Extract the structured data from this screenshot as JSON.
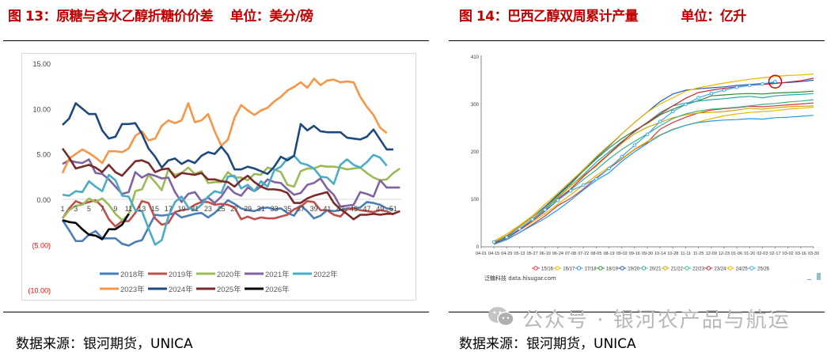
{
  "left": {
    "title": "图 13：原糖与含水乙醇折糖价价差    单位：美分/磅",
    "source": "数据来源：银河期货，UNICA"
  },
  "right": {
    "title": "图 14：巴西乙醇双周累计产量          单位：亿升",
    "source": "数据来源：银河期货，UNICA",
    "chart_credit": "泛糖科技 data.hisugar.com"
  },
  "watermark": "公众号 · 银河农产品与航运",
  "chart_data": [
    {
      "type": "line",
      "title": "",
      "xlabel": "",
      "ylabel": "",
      "ylim": [
        -10,
        15
      ],
      "y_ticks": [
        "15.00",
        "10.00",
        "5.00",
        "0.00",
        "(5.00)",
        "(10.00)"
      ],
      "x_ticks": [
        "1",
        "3",
        "5",
        "7",
        "9",
        "11",
        "13",
        "15",
        "17",
        "19",
        "21",
        "23",
        "25",
        "27",
        "29",
        "31",
        "33",
        "35",
        "37",
        "39",
        "41",
        "43",
        "45",
        "47",
        "49",
        "51"
      ],
      "grid": false,
      "legend": "bottom",
      "series": [
        {
          "name": "2018年",
          "color": "#4a7ebb",
          "values": [
            -2.3,
            -3.4,
            -4.6,
            -4.6,
            -3.9,
            -3.5,
            -4.3,
            -4.3,
            -4.3,
            -4.9,
            -5.1,
            -4.7,
            -4.5,
            -3.1,
            -1.7,
            -1.8,
            -1.7,
            -1.5,
            -2.0,
            -1.8,
            -1.6,
            -1.5,
            -2.0,
            -1.5,
            -0.8,
            -0.1,
            -0.5,
            -1.0,
            -1.2,
            -1.3,
            -1.0,
            -0.9,
            -1.1,
            -1.0,
            -1.5,
            -1.8,
            -0.7,
            -1.3,
            -2.1,
            -1.8,
            -1.2,
            -1.3,
            -1.2,
            -1.0,
            -1.0,
            -0.9,
            -0.3,
            -0.4,
            -0.6,
            -1.0,
            -1.1
          ]
        },
        {
          "name": "2019年",
          "color": "#c0504d",
          "values": [
            -2.1,
            -1.0,
            -0.2,
            -0.5,
            -0.3,
            -0.1,
            -0.8,
            -2.2,
            -3.0,
            -2.4,
            -2.4,
            -1.5,
            -0.2,
            -0.4,
            -2.1,
            -2.8,
            -2.6,
            -1.4,
            -1.2,
            -1.1,
            -0.6,
            -0.3,
            -0.3,
            -0.6,
            -0.5,
            -0.6,
            -0.9,
            -2.2,
            -1.9,
            -2.2,
            -2.0,
            -2.1,
            -2.1,
            -1.9,
            -1.7,
            -1.1,
            -0.8,
            -0.2,
            -0.3,
            -1.2,
            -1.2,
            -1.7,
            -1.9,
            -1.1,
            -1.0,
            -1.2,
            -1.3,
            -1.4,
            -1.2,
            -1.3,
            -1.7
          ]
        },
        {
          "name": "2020年",
          "color": "#9bbb59",
          "values": [
            -2.1,
            -1.2,
            -0.7,
            -0.6,
            0.1,
            -0.3,
            0.1,
            -0.6,
            -1.6,
            -2.3,
            -1.7,
            0.9,
            1.1,
            2.7,
            1.9,
            1.0,
            3.3,
            2.7,
            2.9,
            3.5,
            2.8,
            3.1,
            1.8,
            1.9,
            1.9,
            3.0,
            2.4,
            2.4,
            2.1,
            2.8,
            2.7,
            3.5,
            3.3,
            3.0,
            1.6,
            1.4,
            3.1,
            3.4,
            3.4,
            3.7,
            3.6,
            3.6,
            3.5,
            3.3,
            3.4,
            3.5,
            2.9,
            2.4,
            2.1,
            2.2,
            2.9,
            3.4
          ]
        },
        {
          "name": "2021年",
          "color": "#8064a2",
          "values": [
            3.9,
            4.3,
            4.1,
            4.0,
            4.4,
            2.9,
            2.8,
            2.2,
            1.4,
            0.6,
            0.8,
            3.0,
            2.4,
            2.8,
            2.6,
            2.3,
            2.4,
            0.8,
            -0.3,
            0.6,
            0.8,
            -0.2,
            0.2,
            -0.4,
            0.3,
            1.4,
            0.7,
            0.4,
            1.3,
            0.9,
            1.4,
            2.2,
            1.9,
            1.8,
            1.1,
            0.5,
            0.7,
            1.6,
            1.8,
            2.3,
            1.2,
            0.5,
            -0.8,
            -0.7,
            -0.6,
            0.8,
            0.6,
            0.3,
            2.1,
            1.3,
            1.3,
            1.3
          ]
        },
        {
          "name": "2022年",
          "color": "#4bacc6",
          "values": [
            0.5,
            0.4,
            0.9,
            0.8,
            2.0,
            1.4,
            0.9,
            2.7,
            2.1,
            0.4,
            0.3,
            -1.2,
            -1.3,
            -3.2,
            -5.0,
            -4.5,
            -1.9,
            -0.3,
            0.3,
            -0.9,
            -1.2,
            -0.6,
            0.3,
            0.9,
            0.7,
            2.5,
            2.6,
            1.2,
            1.6,
            0.9,
            2.0,
            1.4,
            3.2,
            3.6,
            4.5,
            4.8,
            4.0,
            3.8,
            3.4,
            2.5,
            2.4,
            1.7,
            3.8,
            4.4,
            3.8,
            3.5,
            4.1,
            4.9,
            4.6,
            3.7
          ]
        },
        {
          "name": "2023年",
          "color": "#f79646",
          "values": [
            2.9,
            4.5,
            5.0,
            5.5,
            5.1,
            4.6,
            4.0,
            5.3,
            5.3,
            5.2,
            5.6,
            7.0,
            7.5,
            6.5,
            6.7,
            8.1,
            8.7,
            8.4,
            8.7,
            10.6,
            8.5,
            8.7,
            9.4,
            7.5,
            5.9,
            6.6,
            9.0,
            10.4,
            9.8,
            9.3,
            9.8,
            10.1,
            10.8,
            11.3,
            12.0,
            12.4,
            12.9,
            12.3,
            13.3,
            12.6,
            13.1,
            13.2,
            12.9,
            13.0,
            12.9,
            11.3,
            10.2,
            9.3,
            7.9,
            7.3
          ]
        },
        {
          "name": "2024年",
          "color": "#1f497d",
          "values": [
            8.2,
            8.9,
            10.6,
            10.0,
            9.4,
            9.4,
            7.6,
            6.7,
            6.9,
            8.3,
            8.3,
            8.4,
            7.2,
            5.6,
            4.7,
            3.5,
            4.3,
            4.5,
            3.9,
            4.3,
            4.0,
            4.8,
            5.2,
            5.0,
            5.8,
            4.9,
            3.3,
            3.3,
            3.6,
            3.4,
            3.1,
            2.8,
            3.6,
            4.7,
            4.3,
            4.8,
            8.3,
            7.6,
            8.1,
            7.5,
            7.4,
            7.4,
            7.4,
            6.8,
            6.7,
            6.6,
            6.9,
            7.7,
            6.6,
            5.5,
            5.5
          ]
        },
        {
          "name": "2025年",
          "color": "#772c2a",
          "values": [
            5.6,
            4.6,
            3.4,
            3.6,
            3.8,
            3.5,
            3.0,
            3.8,
            3.0,
            2.6,
            3.4,
            4.2,
            4.3,
            4.0,
            3.0,
            3.3,
            3.4,
            2.4,
            2.9,
            2.8,
            2.7,
            2.9,
            2.2,
            2.2,
            2.0,
            1.9,
            1.4,
            2.1,
            2.6,
            1.9,
            1.4,
            1.1,
            1.1,
            1.0,
            0.7,
            -0.4,
            -0.4,
            0.1,
            0.4,
            0.6,
            0.8,
            -0.4,
            -1.1,
            -1.6,
            -2.2,
            -1.7,
            -1.7,
            -1.6,
            -1.7,
            -1.6,
            -1.6,
            -1.3
          ]
        },
        {
          "name": "2026年",
          "color": "#000000",
          "values": [
            -2.3,
            -2.5,
            -2.6,
            -3.3,
            -3.9,
            -4.0,
            -4.4,
            -3.3,
            -3.3,
            -2.8,
            -1.6
          ]
        }
      ]
    },
    {
      "type": "line",
      "title": "",
      "xlabel": "",
      "ylabel": "",
      "ylim": [
        0,
        410
      ],
      "y_ticks": [
        "0",
        "100",
        "200",
        "300",
        "410"
      ],
      "x_ticks": [
        "04-01",
        "04-15",
        "04-29",
        "05-13",
        "05-27",
        "06-10",
        "06-24",
        "07-08",
        "07-22",
        "08-05",
        "08-19",
        "09-02",
        "09-16",
        "09-30",
        "10-14",
        "10-28",
        "11-11",
        "11-25",
        "12-09",
        "12-23",
        "01-06",
        "01-20",
        "02-03",
        "02-17",
        "03-02",
        "03-16",
        "03-30"
      ],
      "grid": false,
      "legend": "bottom",
      "highlight": {
        "series": "25/26",
        "x": "02-17",
        "color": "#e00000"
      },
      "series": [
        {
          "name": "15/16",
          "color": "#d9363e",
          "values": [
            5,
            16,
            30,
            47,
            65,
            87,
            102,
            122,
            145,
            165,
            185,
            205,
            220,
            248,
            262,
            273,
            282,
            288,
            291,
            293,
            296,
            295,
            297,
            299,
            301,
            303
          ]
        },
        {
          "name": "16/17",
          "color": "#e6b800",
          "values": [
            8,
            20,
            35,
            52,
            70,
            90,
            110,
            130,
            150,
            168,
            186,
            206,
            222,
            236,
            248,
            256,
            263,
            270,
            276,
            280,
            283,
            285,
            287,
            290,
            292,
            294
          ]
        },
        {
          "name": "17/18",
          "color": "#1e9be8",
          "values": [
            5,
            15,
            30,
            45,
            60,
            78,
            98,
            120,
            140,
            156,
            180,
            200,
            218,
            235,
            247,
            256,
            262,
            265,
            267,
            268,
            270,
            269,
            272,
            273,
            275,
            277
          ]
        },
        {
          "name": "18/19",
          "color": "#2e8b2e",
          "values": [
            8,
            22,
            45,
            62,
            82,
            108,
            132,
            160,
            185,
            208,
            228,
            245,
            260,
            278,
            290,
            300,
            308,
            318,
            320,
            322,
            323,
            322,
            324,
            325,
            326,
            328
          ]
        },
        {
          "name": "19/20",
          "color": "#1f5fbf",
          "values": [
            8,
            22,
            42,
            62,
            85,
            110,
            135,
            163,
            188,
            212,
            238,
            262,
            284,
            306,
            322,
            330,
            333,
            335,
            337,
            340,
            342,
            344,
            345,
            346,
            348,
            351
          ]
        },
        {
          "name": "20/21",
          "color": "#2aa7a7",
          "values": [
            6,
            20,
            38,
            58,
            80,
            103,
            128,
            152,
            178,
            200,
            222,
            242,
            262,
            283,
            297,
            303,
            307,
            310,
            312,
            315,
            317,
            314,
            318,
            320,
            321,
            323
          ]
        },
        {
          "name": "21/22",
          "color": "#d4a500",
          "values": [
            10,
            24,
            42,
            62,
            82,
            105,
            128,
            150,
            170,
            195,
            218,
            238,
            252,
            262,
            272,
            278,
            282,
            283,
            285,
            288,
            292,
            290,
            293,
            295,
            296,
            297
          ]
        },
        {
          "name": "22/23",
          "color": "#3cb38a",
          "values": [
            5,
            18,
            35,
            55,
            75,
            98,
            120,
            142,
            162,
            185,
            205,
            222,
            238,
            255,
            270,
            280,
            286,
            290,
            292,
            294,
            297,
            300,
            302,
            305,
            307,
            310
          ]
        },
        {
          "name": "23/24",
          "color": "#c8283c",
          "values": [
            7,
            19,
            35,
            55,
            75,
            100,
            122,
            148,
            172,
            196,
            220,
            244,
            262,
            280,
            297,
            313,
            325,
            330,
            334,
            337,
            340,
            342,
            344,
            347,
            350,
            355
          ]
        },
        {
          "name": "24/25",
          "color": "#f0b400",
          "values": [
            12,
            27,
            45,
            65,
            90,
            113,
            138,
            163,
            190,
            214,
            238,
            262,
            284,
            301,
            314,
            328,
            335,
            340,
            345,
            349,
            353,
            356,
            359,
            361,
            362,
            364
          ]
        },
        {
          "name": "25/26",
          "color": "#3aa8f0",
          "values": [
            10,
            20,
            38,
            58,
            78,
            98,
            118,
            130,
            143,
            165,
            190,
            214,
            237,
            264,
            285,
            300,
            314,
            323,
            330,
            336,
            340,
            343,
            348
          ]
        }
      ]
    }
  ]
}
